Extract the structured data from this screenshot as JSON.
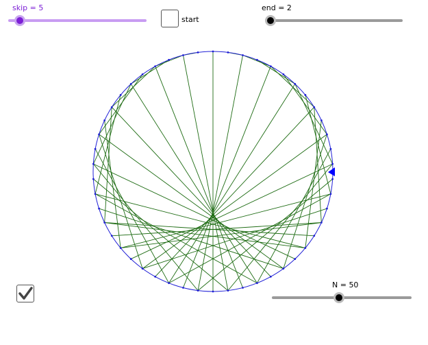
{
  "sliders": {
    "skip": {
      "label": "skip = 5",
      "value": 5,
      "fill_fraction": 0.0,
      "color": "#7c1fd6",
      "track_color": "#c89cf2"
    },
    "end": {
      "label": "end = 2",
      "value": 2,
      "fill_fraction": 0.0,
      "color": "#000000",
      "track_color": "#9a9a9a"
    },
    "n": {
      "label": "N = 50",
      "value": 50,
      "fill_fraction": 0.49,
      "color": "#000000",
      "track_color": "#9a9a9a"
    }
  },
  "start_checkbox": {
    "label": "start",
    "checked": false
  },
  "show_checkbox": {
    "checked": true
  },
  "drawing": {
    "points": 50,
    "multiplier": 2,
    "circle_color": "#1f1fd6",
    "line_color": "#1d6b12",
    "marker_color": "#0000ff"
  }
}
